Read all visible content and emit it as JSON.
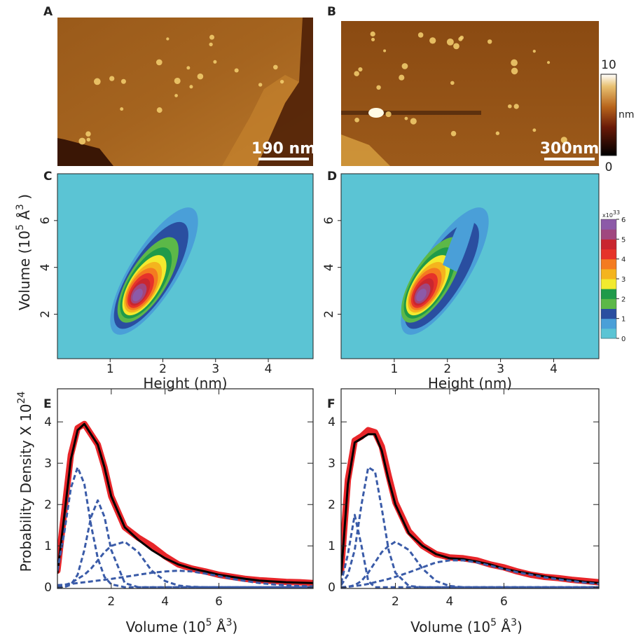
{
  "chart_data": [
    {
      "type": "image",
      "panel": "A",
      "scalebar": "190 nm"
    },
    {
      "type": "image",
      "panel": "B",
      "scalebar": "300nm",
      "colorbar": {
        "ticks": [
          0,
          10
        ],
        "label": "nm"
      }
    },
    {
      "type": "contour",
      "panel": "C",
      "xlabel": "Height (nm)",
      "ylabel": [
        "Volume (10",
        "5",
        " Å",
        "3",
        " )"
      ],
      "xlim": [
        0,
        4.85
      ],
      "ylim": [
        0.1,
        8
      ],
      "xticks": [
        1,
        2,
        3,
        4
      ],
      "yticks": [
        2,
        4,
        6
      ]
    },
    {
      "type": "contour",
      "panel": "D",
      "xlabel": "Height (nm)",
      "xlim": [
        0,
        4.85
      ],
      "ylim": [
        0.1,
        8
      ],
      "xticks": [
        1,
        2,
        3,
        4
      ],
      "yticks": [
        2,
        4,
        6
      ],
      "colorbar": {
        "exponent_base": "x10",
        "exponent": "33",
        "ticks": [
          0,
          1,
          2,
          3,
          4,
          5,
          6
        ],
        "colors": [
          "#5bc4d4",
          "#4a9fd8",
          "#2a4ea0",
          "#5cb848",
          "#1f9a4a",
          "#f2ea2e",
          "#f4b41e",
          "#f47b20",
          "#e6332a",
          "#c9262f",
          "#a0477f",
          "#8c5aa8"
        ]
      }
    },
    {
      "type": "line",
      "panel": "E",
      "xlabel": [
        "Volume (10",
        "5",
        " Å",
        "3",
        ")"
      ],
      "ylabel": [
        "Probability Density X 10",
        "24"
      ],
      "xlim": [
        0,
        9.5
      ],
      "ylim": [
        -0.03,
        4.8
      ],
      "xticks": [
        2,
        4,
        6
      ],
      "yticks": [
        0,
        1,
        2,
        3,
        4
      ],
      "x": [
        0,
        0.25,
        0.5,
        0.75,
        1,
        1.25,
        1.5,
        1.75,
        2,
        2.5,
        3,
        3.5,
        4,
        4.5,
        5,
        5.5,
        6,
        6.5,
        7,
        7.5,
        8,
        8.5,
        9,
        9.5
      ],
      "series": [
        {
          "color": "#e8262a",
          "style": "data",
          "values": [
            0.4,
            1.8,
            3.2,
            3.85,
            3.95,
            3.7,
            3.45,
            2.9,
            2.2,
            1.45,
            1.2,
            1.0,
            0.75,
            0.55,
            0.45,
            0.38,
            0.3,
            0.25,
            0.2,
            0.17,
            0.15,
            0.13,
            0.12,
            0.1
          ]
        },
        {
          "color": "#000000",
          "style": "fit",
          "values": [
            0.35,
            1.7,
            3.1,
            3.8,
            3.95,
            3.7,
            3.45,
            2.9,
            2.2,
            1.45,
            1.15,
            0.9,
            0.7,
            0.55,
            0.45,
            0.38,
            0.3,
            0.25,
            0.2,
            0.16,
            0.14,
            0.12,
            0.11,
            0.1
          ]
        },
        {
          "color": "#3a5ba8",
          "style": "dashed",
          "values": [
            0.4,
            1.3,
            2.4,
            2.9,
            2.5,
            1.5,
            0.7,
            0.25,
            0.07,
            0,
            0,
            0,
            0,
            0,
            0,
            0,
            0,
            0,
            0,
            0,
            0,
            0,
            0,
            0
          ]
        },
        {
          "color": "#3a5ba8",
          "style": "dashed",
          "values": [
            0,
            0,
            0.06,
            0.3,
            0.9,
            1.7,
            2.1,
            1.7,
            0.9,
            0.1,
            0,
            0,
            0,
            0,
            0,
            0,
            0,
            0,
            0,
            0,
            0,
            0,
            0,
            0
          ]
        },
        {
          "color": "#3a5ba8",
          "style": "dashed",
          "values": [
            0.02,
            0.05,
            0.1,
            0.2,
            0.3,
            0.45,
            0.65,
            0.85,
            1.0,
            1.1,
            0.85,
            0.4,
            0.15,
            0.04,
            0.01,
            0,
            0,
            0,
            0,
            0,
            0,
            0,
            0,
            0
          ]
        },
        {
          "color": "#3a5ba8",
          "style": "dashed",
          "values": [
            0.05,
            0.06,
            0.08,
            0.1,
            0.12,
            0.14,
            0.16,
            0.18,
            0.2,
            0.25,
            0.3,
            0.35,
            0.38,
            0.4,
            0.38,
            0.33,
            0.27,
            0.2,
            0.15,
            0.1,
            0.07,
            0.05,
            0.03,
            0.02
          ]
        }
      ]
    },
    {
      "type": "line",
      "panel": "F",
      "xlabel": [
        "Volume (10",
        "5",
        " Å",
        "3",
        ")"
      ],
      "xlim": [
        0,
        9.5
      ],
      "ylim": [
        -0.03,
        4.8
      ],
      "xticks": [
        2,
        4,
        6
      ],
      "yticks": [
        0,
        1,
        2,
        3,
        4
      ],
      "x": [
        0,
        0.25,
        0.5,
        0.75,
        1,
        1.25,
        1.5,
        1.75,
        2,
        2.5,
        3,
        3.5,
        4,
        4.5,
        5,
        5.5,
        6,
        6.5,
        7,
        7.5,
        8,
        8.5,
        9,
        9.5
      ],
      "series": [
        {
          "color": "#e8262a",
          "style": "data",
          "values": [
            0.4,
            2.6,
            3.55,
            3.65,
            3.8,
            3.75,
            3.4,
            2.7,
            2.05,
            1.35,
            1.0,
            0.8,
            0.72,
            0.7,
            0.65,
            0.55,
            0.48,
            0.38,
            0.3,
            0.25,
            0.22,
            0.18,
            0.15,
            0.12
          ]
        },
        {
          "color": "#000000",
          "style": "fit",
          "values": [
            0.3,
            2.5,
            3.5,
            3.6,
            3.7,
            3.7,
            3.3,
            2.6,
            2.0,
            1.3,
            1.0,
            0.8,
            0.7,
            0.68,
            0.62,
            0.55,
            0.45,
            0.38,
            0.32,
            0.26,
            0.21,
            0.17,
            0.13,
            0.1
          ]
        },
        {
          "color": "#3a5ba8",
          "style": "dashed",
          "values": [
            0.1,
            0.8,
            1.75,
            1.0,
            0.15,
            0,
            0,
            0,
            0,
            0,
            0,
            0,
            0,
            0,
            0,
            0,
            0,
            0,
            0,
            0,
            0,
            0,
            0,
            0
          ]
        },
        {
          "color": "#3a5ba8",
          "style": "dashed",
          "values": [
            0.05,
            0.3,
            0.9,
            2.0,
            2.9,
            2.8,
            1.9,
            0.9,
            0.35,
            0.03,
            0,
            0,
            0,
            0,
            0,
            0,
            0,
            0,
            0,
            0,
            0,
            0,
            0,
            0
          ]
        },
        {
          "color": "#3a5ba8",
          "style": "dashed",
          "values": [
            0,
            0.01,
            0.05,
            0.15,
            0.35,
            0.6,
            0.85,
            1.0,
            1.1,
            0.9,
            0.45,
            0.15,
            0.03,
            0,
            0,
            0,
            0,
            0,
            0,
            0,
            0,
            0,
            0,
            0
          ]
        },
        {
          "color": "#3a5ba8",
          "style": "dashed",
          "values": [
            0,
            0.01,
            0.03,
            0.05,
            0.08,
            0.12,
            0.16,
            0.2,
            0.25,
            0.36,
            0.48,
            0.6,
            0.65,
            0.65,
            0.6,
            0.52,
            0.44,
            0.36,
            0.3,
            0.24,
            0.19,
            0.15,
            0.11,
            0.08
          ]
        }
      ]
    }
  ]
}
